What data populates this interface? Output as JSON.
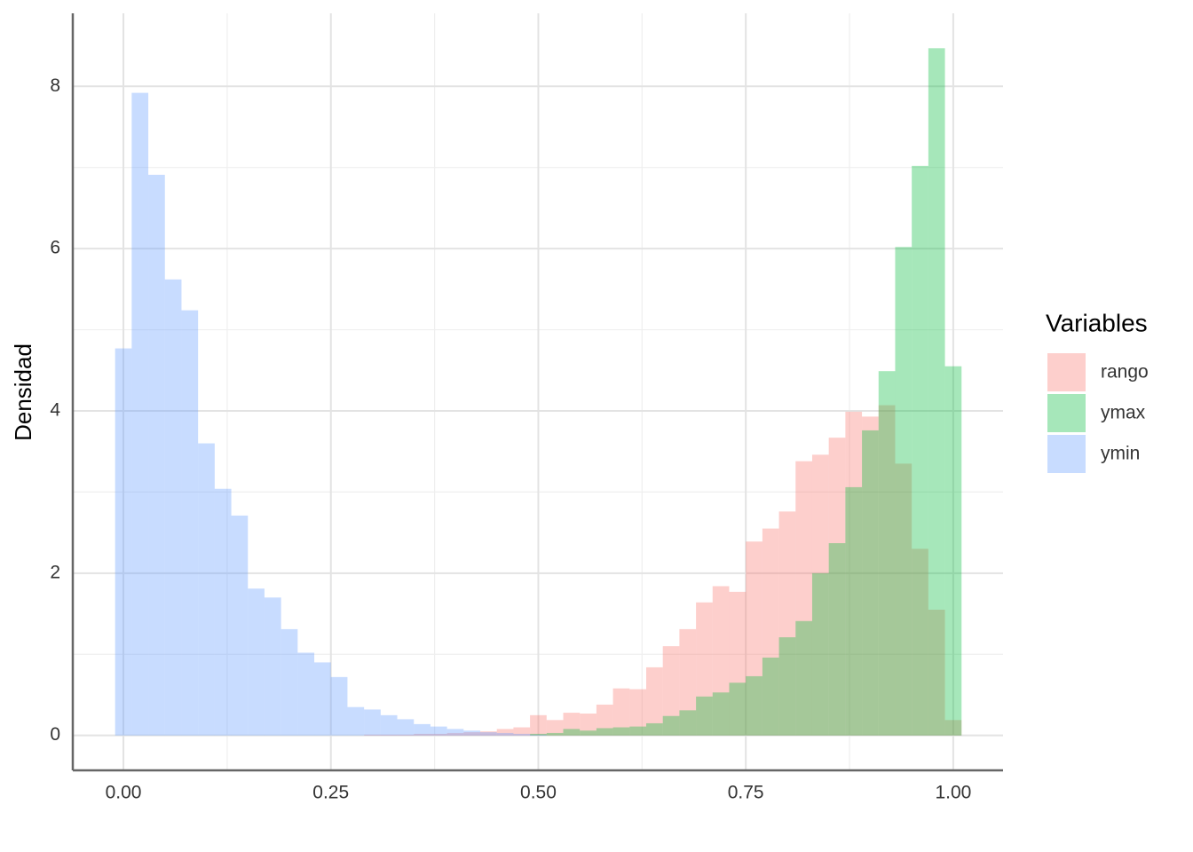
{
  "chart_data": {
    "type": "histogram",
    "y_label": "Densidad",
    "legend_title": "Variables",
    "legend_position": "right",
    "alpha": 0.35,
    "grid": true,
    "bins": [
      -0.01,
      0.01,
      0.03,
      0.05,
      0.07,
      0.09,
      0.11,
      0.13,
      0.15,
      0.17,
      0.19,
      0.21,
      0.23,
      0.25,
      0.27,
      0.29,
      0.31,
      0.33,
      0.35,
      0.37,
      0.39,
      0.41,
      0.43,
      0.45,
      0.47,
      0.49,
      0.51,
      0.53,
      0.55,
      0.57,
      0.59,
      0.61,
      0.63,
      0.65,
      0.67,
      0.69,
      0.71,
      0.73,
      0.75,
      0.77,
      0.79,
      0.81,
      0.83,
      0.85,
      0.87,
      0.89,
      0.91,
      0.93,
      0.95,
      0.97,
      0.99,
      1.01
    ],
    "series": [
      {
        "name": "rango",
        "color": "#F8766D",
        "values": [
          0,
          0,
          0,
          0,
          0,
          0,
          0,
          0,
          0,
          0,
          0,
          0,
          0,
          0,
          0,
          0.01,
          0.01,
          0.01,
          0.02,
          0.02,
          0.03,
          0.04,
          0.05,
          0.08,
          0.1,
          0.25,
          0.19,
          0.28,
          0.27,
          0.38,
          0.58,
          0.57,
          0.84,
          1.1,
          1.31,
          1.64,
          1.84,
          1.77,
          2.39,
          2.55,
          2.76,
          3.38,
          3.46,
          3.67,
          3.99,
          3.93,
          4.07,
          3.35,
          2.3,
          1.55,
          0.19
        ]
      },
      {
        "name": "ymax",
        "color": "#00BA38",
        "values": [
          0,
          0,
          0,
          0,
          0,
          0,
          0,
          0,
          0,
          0,
          0,
          0,
          0,
          0,
          0,
          0,
          0,
          0,
          0,
          0,
          0,
          0,
          0,
          0,
          0,
          0.02,
          0.03,
          0.08,
          0.06,
          0.09,
          0.1,
          0.11,
          0.15,
          0.24,
          0.31,
          0.48,
          0.53,
          0.65,
          0.73,
          0.96,
          1.21,
          1.41,
          2.0,
          2.37,
          3.06,
          3.76,
          4.49,
          6.02,
          7.02,
          8.47,
          4.55
        ]
      },
      {
        "name": "ymin",
        "color": "#619CFF",
        "values": [
          4.77,
          7.92,
          6.91,
          5.62,
          5.24,
          3.6,
          3.04,
          2.71,
          1.81,
          1.7,
          1.31,
          1.02,
          0.9,
          0.72,
          0.35,
          0.32,
          0.25,
          0.2,
          0.14,
          0.11,
          0.08,
          0.06,
          0.04,
          0.03,
          0.02,
          0.01,
          0,
          0,
          0,
          0,
          0,
          0,
          0,
          0,
          0,
          0,
          0,
          0,
          0,
          0,
          0,
          0,
          0,
          0,
          0,
          0,
          0,
          0,
          0,
          0,
          0
        ]
      }
    ],
    "xlim": [
      -0.061,
      1.06
    ],
    "ylim": [
      -0.43,
      8.9
    ],
    "xticks": [
      {
        "value": 0,
        "label": "0.00"
      },
      0.25,
      {
        "value": 0.5,
        "label": "0.50"
      },
      0.75,
      {
        "value": 1,
        "label": "1.00"
      }
    ],
    "yticks": [
      0,
      2,
      4,
      6,
      8
    ]
  }
}
